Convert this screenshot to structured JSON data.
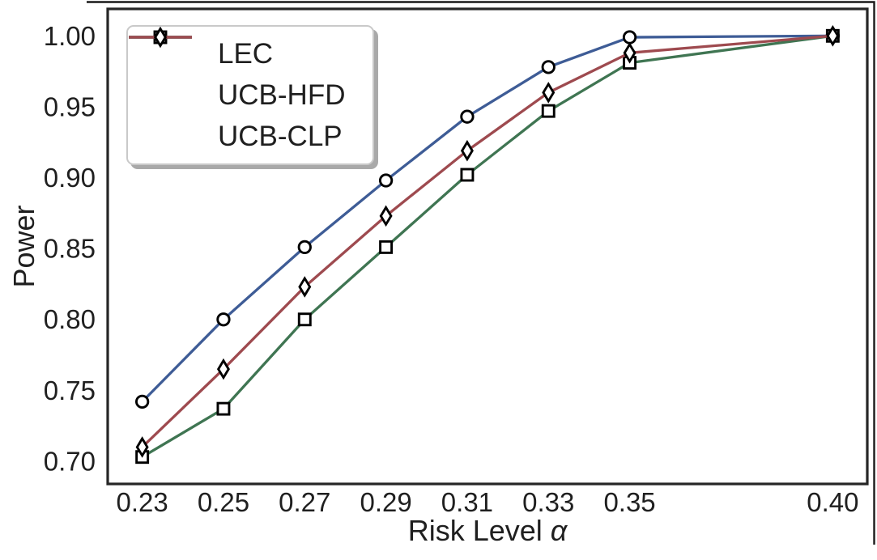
{
  "figure": {
    "background": "#ffffff",
    "axis_color": "#262626",
    "text_color": "#1f1f1f",
    "partial_frame_color": "#1a1a1a",
    "legend_border_color": "#c9c9c9",
    "legend_shadow_color": "#a9a9a9",
    "marker_edge_color": "#000000",
    "marker_fill_color": "#ffffff"
  },
  "chart_data": {
    "type": "line",
    "title": "",
    "xlabel": "Risk Level α",
    "ylabel": "Power",
    "x": [
      0.23,
      0.25,
      0.27,
      0.29,
      0.31,
      0.33,
      0.35,
      0.4
    ],
    "xtick_labels": [
      "0.23",
      "0.25",
      "0.27",
      "0.29",
      "0.31",
      "0.33",
      "0.35",
      "0.40"
    ],
    "yticks": [
      0.7,
      0.75,
      0.8,
      0.85,
      0.9,
      0.95,
      1.0
    ],
    "ytick_labels": [
      "0.70",
      "0.75",
      "0.80",
      "0.85",
      "0.90",
      "0.95",
      "1.00"
    ],
    "xlim": [
      0.2215,
      0.4085
    ],
    "ylim": [
      0.684,
      1.019
    ],
    "grid": false,
    "legend_position": "upper-left",
    "series": [
      {
        "name": "LEC",
        "color": "#3e5c96",
        "marker": "circle",
        "values": [
          0.742,
          0.8,
          0.851,
          0.898,
          0.943,
          0.978,
          0.999,
          1.0
        ]
      },
      {
        "name": "UCB-HFD",
        "color": "#3f7552",
        "marker": "square",
        "values": [
          0.703,
          0.737,
          0.8,
          0.851,
          0.902,
          0.947,
          0.981,
          1.0
        ]
      },
      {
        "name": "UCB-CLP",
        "color": "#9e4a4f",
        "marker": "diamond",
        "values": [
          0.71,
          0.765,
          0.823,
          0.873,
          0.919,
          0.96,
          0.988,
          1.0
        ]
      }
    ]
  }
}
